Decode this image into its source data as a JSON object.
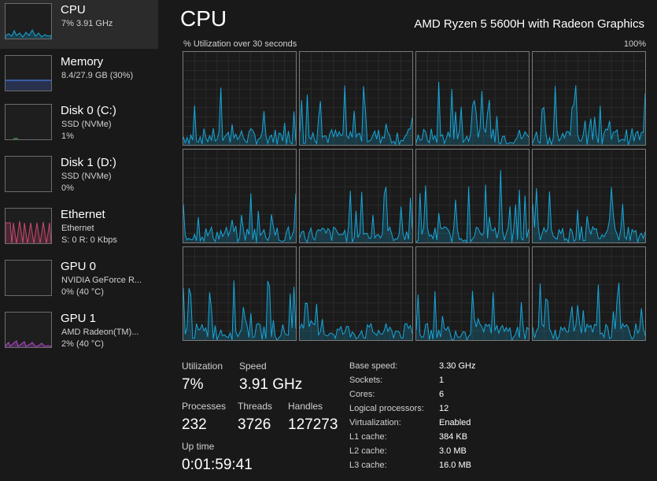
{
  "sidebar": {
    "items": [
      {
        "title": "CPU",
        "sub1": "7% 3.91 GHz",
        "sub2": "",
        "color": "#17a7d9",
        "active": true
      },
      {
        "title": "Memory",
        "sub1": "8.4/27.9 GB (30%)",
        "sub2": "",
        "color": "#8a5cd6",
        "active": false
      },
      {
        "title": "Disk 0 (C:)",
        "sub1": "SSD (NVMe)",
        "sub2": "1%",
        "color": "#4db84d",
        "active": false
      },
      {
        "title": "Disk 1 (D:)",
        "sub1": "SSD (NVMe)",
        "sub2": "0%",
        "color": "#4db84d",
        "active": false
      },
      {
        "title": "Ethernet",
        "sub1": "Ethernet",
        "sub2": "S: 0 R: 0 Kbps",
        "color": "#c9496f",
        "active": false
      },
      {
        "title": "GPU 0",
        "sub1": "NVIDIA GeForce R...",
        "sub2": "0% (40 °C)",
        "color": "#b04cc9",
        "active": false
      },
      {
        "title": "GPU 1",
        "sub1": "AMD Radeon(TM)...",
        "sub2": "2% (40 °C)",
        "color": "#b04cc9",
        "active": false
      }
    ]
  },
  "header": {
    "title": "CPU",
    "processor": "AMD Ryzen 5 5600H with Radeon Graphics",
    "util_caption": "% Utilization over 30 seconds",
    "util_max": "100%"
  },
  "graph": {
    "line_color": "#17a7d9",
    "grid_color": "#333333",
    "core_count": 12
  },
  "stats": {
    "utilization_label": "Utilization",
    "utilization_value": "7%",
    "speed_label": "Speed",
    "speed_value": "3.91 GHz",
    "processes_label": "Processes",
    "processes_value": "232",
    "threads_label": "Threads",
    "threads_value": "3726",
    "handles_label": "Handles",
    "handles_value": "127273",
    "uptime_label": "Up time",
    "uptime_value": "0:01:59:41"
  },
  "specs": [
    {
      "label": "Base speed:",
      "value": "3.30 GHz"
    },
    {
      "label": "Sockets:",
      "value": "1"
    },
    {
      "label": "Cores:",
      "value": "6"
    },
    {
      "label": "Logical processors:",
      "value": "12"
    },
    {
      "label": "Virtualization:",
      "value": "Enabled"
    },
    {
      "label": "L1 cache:",
      "value": "384 KB"
    },
    {
      "label": "L2 cache:",
      "value": "3.0 MB"
    },
    {
      "label": "L3 cache:",
      "value": "16.0 MB"
    }
  ]
}
